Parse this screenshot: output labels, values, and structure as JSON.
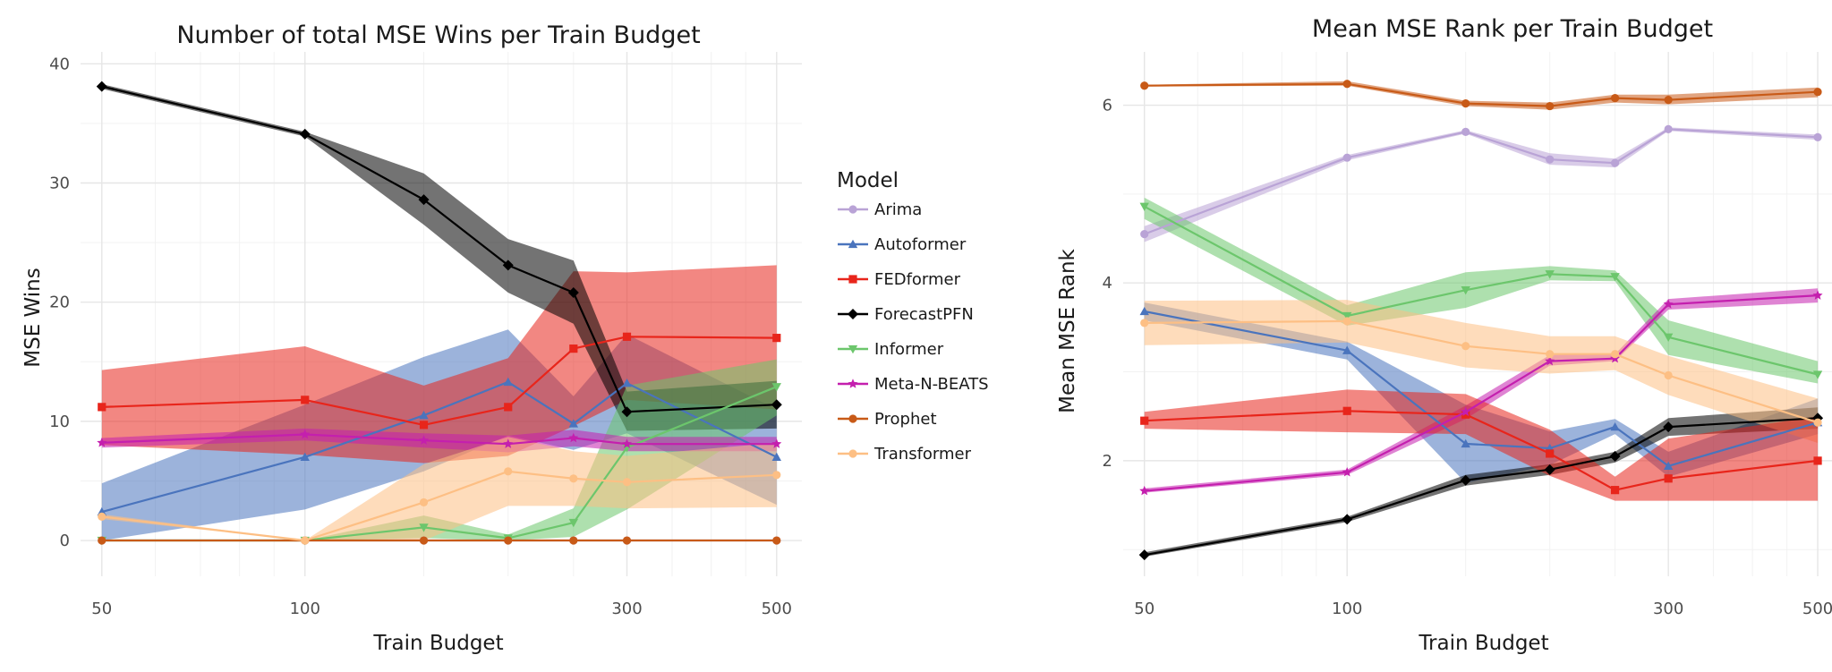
{
  "legend": {
    "title": "Model",
    "entries": [
      {
        "name": "Arima",
        "color": "#b9a3d6",
        "marker": "circle"
      },
      {
        "name": "Autoformer",
        "color": "#4a74bd",
        "marker": "triangle-up"
      },
      {
        "name": "FEDformer",
        "color": "#e8251b",
        "marker": "square"
      },
      {
        "name": "ForecastPFN",
        "color": "#000000",
        "marker": "diamond"
      },
      {
        "name": "Informer",
        "color": "#6cc66c",
        "marker": "triangle-down"
      },
      {
        "name": "Meta-N-BEATS",
        "color": "#c41fae",
        "marker": "star"
      },
      {
        "name": "Prophet",
        "color": "#c85a17",
        "marker": "circle"
      },
      {
        "name": "Transformer",
        "color": "#fdbf84",
        "marker": "circle"
      }
    ]
  },
  "chart_data": [
    {
      "type": "line",
      "title": "Number of total MSE Wins per Train Budget",
      "xlabel": "Train Budget",
      "ylabel": "MSE Wins",
      "xscale": "log",
      "xlim": [
        46.5,
        545
      ],
      "ylim": [
        -3,
        41
      ],
      "xticks": [
        50,
        100,
        300,
        500
      ],
      "yticks": [
        0,
        10,
        20,
        30,
        40
      ],
      "x": [
        50,
        100,
        150,
        200,
        250,
        300,
        500
      ],
      "series": [
        {
          "name": "Arima",
          "values": [
            0,
            0,
            0,
            0,
            0,
            0,
            0
          ],
          "lower": [
            0,
            0,
            0,
            0,
            0,
            0,
            0
          ],
          "upper": [
            0,
            0,
            0,
            0,
            0,
            0,
            0
          ]
        },
        {
          "name": "Autoformer",
          "values": [
            2.4,
            7,
            10.5,
            13.3,
            9.8,
            13.2,
            7
          ],
          "lower": [
            0,
            2.6,
            5.8,
            8.8,
            7.6,
            9,
            3
          ],
          "upper": [
            4.8,
            11.4,
            15.4,
            17.7,
            12.1,
            17.3,
            11
          ]
        },
        {
          "name": "FEDformer",
          "values": [
            11.2,
            11.8,
            9.7,
            11.2,
            16.1,
            17.1,
            17
          ],
          "lower": [
            8,
            7.2,
            6.5,
            7.1,
            9.6,
            11.8,
            11
          ],
          "upper": [
            14.3,
            16.3,
            13,
            15.3,
            22.6,
            22.5,
            23.1
          ]
        },
        {
          "name": "ForecastPFN",
          "values": [
            38.1,
            34.1,
            28.6,
            23.1,
            20.8,
            10.8,
            11.4
          ],
          "lower": [
            37.9,
            33.9,
            26.5,
            20.8,
            18.2,
            9.2,
            9.4
          ],
          "upper": [
            38.3,
            34.3,
            30.8,
            25.3,
            23.5,
            12.5,
            13.4
          ]
        },
        {
          "name": "Informer",
          "values": [
            0,
            0,
            1.1,
            0.2,
            1.5,
            7.8,
            12.9
          ],
          "lower": [
            0,
            0,
            0.2,
            0,
            0.3,
            2.6,
            10.5
          ],
          "upper": [
            0,
            0,
            2.1,
            0.5,
            2.7,
            13,
            15.2
          ]
        },
        {
          "name": "Meta-N-BEATS",
          "values": [
            8.2,
            8.9,
            8.4,
            8.1,
            8.6,
            8.1,
            8.1
          ],
          "lower": [
            7.8,
            8.4,
            7.8,
            7.4,
            7.9,
            7.5,
            7.5
          ],
          "upper": [
            8.6,
            9.4,
            9,
            8.8,
            9.3,
            8.7,
            8.7
          ]
        },
        {
          "name": "Prophet",
          "values": [
            0,
            0,
            0,
            0,
            0,
            0,
            0
          ],
          "lower": [
            0,
            0,
            0,
            0,
            0,
            0,
            0
          ],
          "upper": [
            0,
            0,
            0,
            0,
            0,
            0,
            0
          ]
        },
        {
          "name": "Transformer",
          "values": [
            2,
            0,
            3.2,
            5.8,
            5.2,
            4.9,
            5.5
          ],
          "lower": [
            1.8,
            0,
            0,
            2.9,
            2.9,
            2.7,
            2.8
          ],
          "upper": [
            2.2,
            0,
            6.4,
            8.7,
            7.5,
            7.1,
            8.2
          ]
        }
      ]
    },
    {
      "type": "line",
      "title": "Mean MSE Rank per Train Budget",
      "xlabel": "Train Budget",
      "ylabel": "Mean MSE Rank",
      "xscale": "log",
      "xlim": [
        46.5,
        525
      ],
      "ylim": [
        0.7,
        6.6
      ],
      "xticks": [
        50,
        100,
        300,
        500
      ],
      "yticks": [
        2,
        4,
        6
      ],
      "x": [
        50,
        100,
        150,
        200,
        250,
        300,
        500
      ],
      "series": [
        {
          "name": "Arima",
          "values": [
            4.55,
            5.41,
            5.7,
            5.39,
            5.35,
            5.73,
            5.64
          ],
          "lower": [
            4.46,
            5.38,
            5.68,
            5.33,
            5.3,
            5.71,
            5.61
          ],
          "upper": [
            4.64,
            5.44,
            5.72,
            5.46,
            5.4,
            5.75,
            5.67
          ]
        },
        {
          "name": "Autoformer",
          "values": [
            3.68,
            3.24,
            2.19,
            2.14,
            2.38,
            1.94,
            2.43
          ],
          "lower": [
            3.58,
            3.14,
            1.75,
            1.95,
            2.3,
            1.82,
            2.3
          ],
          "upper": [
            3.78,
            3.34,
            2.63,
            2.33,
            2.47,
            2.1,
            2.7
          ]
        },
        {
          "name": "FEDformer",
          "values": [
            2.45,
            2.56,
            2.52,
            2.08,
            1.67,
            1.8,
            2
          ]
        },
        {
          "name": "ForecastPFN",
          "values": [
            0.94,
            1.34,
            1.78,
            1.9,
            2.05,
            2.38,
            2.48
          ],
          "lower": [
            0.92,
            1.31,
            1.72,
            1.84,
            1.98,
            2.28,
            2.36
          ],
          "upper": [
            0.97,
            1.37,
            1.84,
            1.96,
            2.1,
            2.48,
            2.6
          ]
        },
        {
          "name": "Informer",
          "values": [
            4.86,
            3.63,
            3.92,
            4.1,
            4.07,
            3.39,
            2.97
          ],
          "lower": [
            4.72,
            3.52,
            3.72,
            4.03,
            4.02,
            3.19,
            2.87
          ],
          "upper": [
            4.96,
            3.75,
            4.12,
            4.19,
            4.14,
            3.58,
            3.12
          ]
        },
        {
          "name": "Meta-N-BEATS",
          "values": [
            1.66,
            1.87,
            2.55,
            3.12,
            3.15,
            3.76,
            3.86
          ],
          "lower": [
            1.64,
            1.84,
            2.47,
            3.07,
            3.12,
            3.7,
            3.78
          ],
          "upper": [
            1.69,
            1.9,
            2.62,
            3.19,
            3.2,
            3.82,
            3.94
          ]
        },
        {
          "name": "Prophet",
          "values": [
            6.22,
            6.24,
            6.02,
            5.99,
            6.08,
            6.06,
            6.15
          ],
          "lower": [
            6.21,
            6.22,
            5.99,
            5.95,
            6.03,
            6.01,
            6.09
          ],
          "upper": [
            6.23,
            6.27,
            6.05,
            6.03,
            6.12,
            6.12,
            6.2
          ]
        },
        {
          "name": "Transformer",
          "values": [
            3.55,
            3.57,
            3.29,
            3.2,
            3.2,
            2.96,
            2.43
          ],
          "lower": [
            3.3,
            3.33,
            3.05,
            2.98,
            3.02,
            2.74,
            2.2
          ],
          "upper": [
            3.8,
            3.81,
            3.55,
            3.4,
            3.4,
            3.18,
            2.7
          ]
        }
      ],
      "extra_bands": [
        {
          "name": "FEDformer",
          "x": [
            50,
            100,
            150,
            200,
            250,
            300,
            500
          ],
          "lower": [
            2.36,
            2.32,
            2.3,
            1.83,
            1.55,
            1.55,
            1.55
          ],
          "upper": [
            2.55,
            2.8,
            2.75,
            2.35,
            1.82,
            2.25,
            2.5
          ]
        }
      ]
    }
  ]
}
